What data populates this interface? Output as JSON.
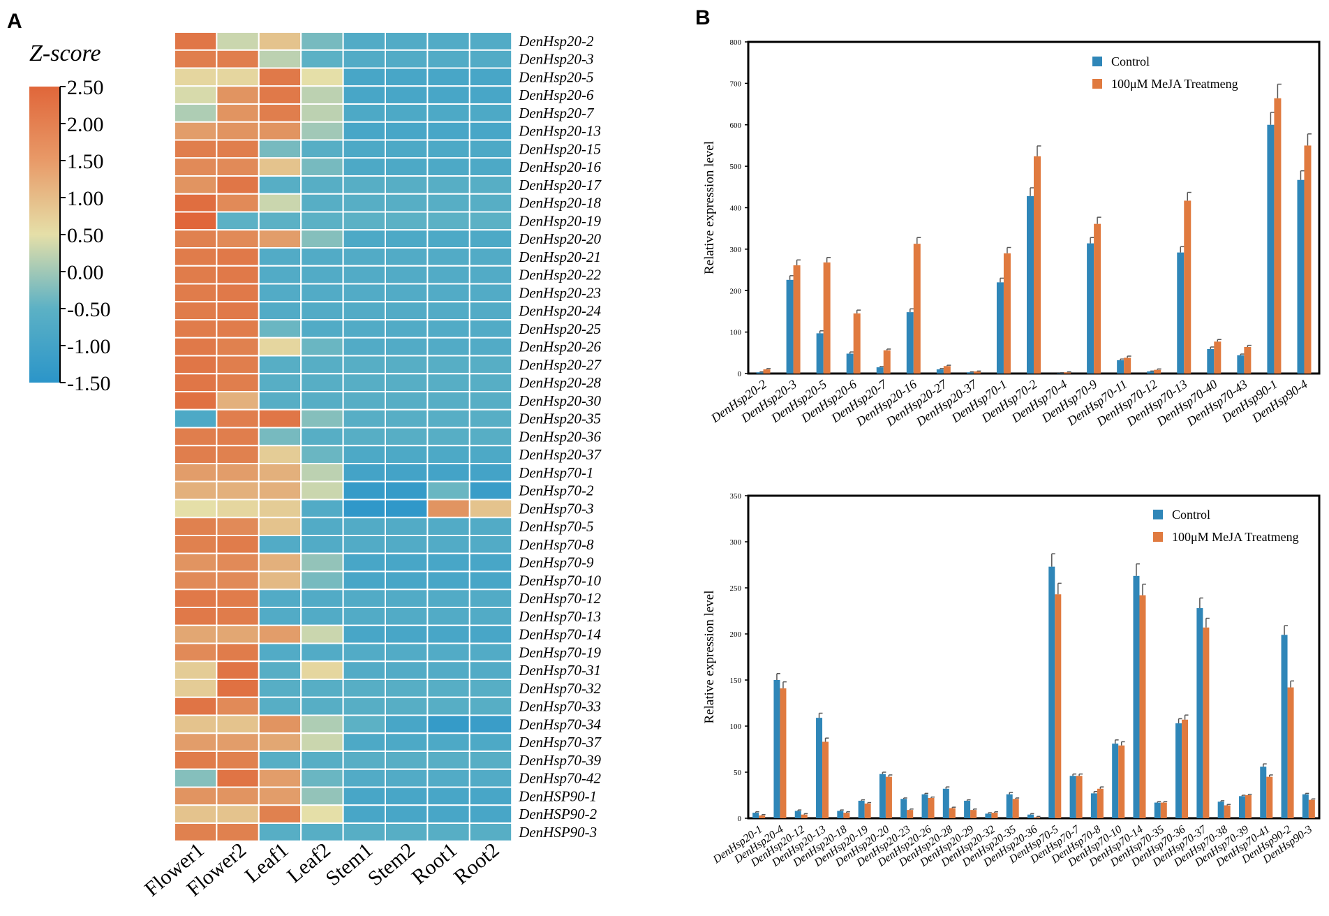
{
  "panels": {
    "a_label": "A",
    "b_label": "B"
  },
  "colors": {
    "scale": [
      "#2b95c9",
      "#5cb1c5",
      "#e5dfa8",
      "#e0814f",
      "#e0663a"
    ],
    "control": "#2f86b8",
    "treatment": "#e07a3f"
  },
  "chart_data": [
    {
      "type": "heatmap",
      "title": "Z-score",
      "colorbar": {
        "min": -1.5,
        "max": 2.5,
        "tick_labels": [
          "2.50",
          "2.00",
          "1.50",
          "1.00",
          "0.50",
          "0.00",
          "-0.50",
          "-1.00",
          "-1.50"
        ]
      },
      "columns": [
        "Flower1",
        "Flower2",
        "Leaf1",
        "Leaf2",
        "Stem1",
        "Stem2",
        "Root1",
        "Root2"
      ],
      "rows": [
        "DenHsp20-2",
        "DenHsp20-3",
        "DenHsp20-5",
        "DenHsp20-6",
        "DenHsp20-7",
        "DenHsp20-13",
        "DenHsp20-15",
        "DenHsp20-16",
        "DenHsp20-17",
        "DenHsp20-18",
        "DenHsp20-19",
        "DenHsp20-20",
        "DenHsp20-21",
        "DenHsp20-22",
        "DenHsp20-23",
        "DenHsp20-24",
        "DenHsp20-25",
        "DenHsp20-26",
        "DenHsp20-27",
        "DenHsp20-28",
        "DenHsp20-30",
        "DenHsp20-35",
        "DenHsp20-36",
        "DenHsp20-37",
        "DenHsp70-1",
        "DenHsp70-2",
        "DenHsp70-3",
        "DenHsp70-5",
        "DenHsp70-8",
        "DenHsp70-9",
        "DenHsp70-10",
        "DenHsp70-12",
        "DenHsp70-13",
        "DenHsp70-14",
        "DenHsp70-19",
        "DenHsp70-31",
        "DenHsp70-32",
        "DenHsp70-33",
        "DenHsp70-34",
        "DenHsp70-37",
        "DenHsp70-39",
        "DenHsp70-42",
        "DenHSP90-1",
        "DenHSP90-2",
        "DenHSP90-3"
      ],
      "values": [
        [
          1.9,
          0.3,
          0.8,
          -0.3,
          -0.7,
          -0.7,
          -0.7,
          -0.7
        ],
        [
          1.6,
          1.6,
          0.2,
          -0.5,
          -0.7,
          -0.7,
          -0.7,
          -0.7
        ],
        [
          0.6,
          0.6,
          1.8,
          0.5,
          -0.9,
          -0.9,
          -0.9,
          -0.9
        ],
        [
          0.4,
          1.3,
          1.8,
          0.2,
          -0.9,
          -0.9,
          -0.9,
          -0.9
        ],
        [
          0.1,
          1.3,
          1.6,
          0.2,
          -0.8,
          -0.8,
          -0.8,
          -0.8
        ],
        [
          1.2,
          1.3,
          1.3,
          0.0,
          -0.9,
          -0.9,
          -0.9,
          -0.9
        ],
        [
          1.6,
          1.6,
          -0.3,
          -0.6,
          -0.8,
          -0.8,
          -0.8,
          -0.8
        ],
        [
          1.4,
          1.4,
          0.8,
          -0.3,
          -0.8,
          -0.8,
          -0.8,
          -0.8
        ],
        [
          1.3,
          1.9,
          -0.6,
          -0.6,
          -0.6,
          -0.6,
          -0.6,
          -0.6
        ],
        [
          2.2,
          1.4,
          0.3,
          -0.6,
          -0.6,
          -0.6,
          -0.6,
          -0.6
        ],
        [
          2.5,
          -0.5,
          -0.5,
          -0.5,
          -0.5,
          -0.5,
          -0.5,
          -0.5
        ],
        [
          1.5,
          1.4,
          1.2,
          -0.2,
          -0.8,
          -0.8,
          -0.8,
          -0.8
        ],
        [
          1.7,
          1.8,
          -0.7,
          -0.7,
          -0.7,
          -0.7,
          -0.7,
          -0.7
        ],
        [
          1.7,
          1.8,
          -0.7,
          -0.7,
          -0.7,
          -0.7,
          -0.7,
          -0.7
        ],
        [
          1.7,
          1.8,
          -0.7,
          -0.7,
          -0.7,
          -0.7,
          -0.7,
          -0.7
        ],
        [
          1.7,
          1.8,
          -0.7,
          -0.7,
          -0.7,
          -0.7,
          -0.7,
          -0.7
        ],
        [
          1.7,
          1.7,
          -0.4,
          -0.7,
          -0.7,
          -0.7,
          -0.7,
          -0.7
        ],
        [
          1.8,
          1.5,
          0.6,
          -0.4,
          -0.7,
          -0.7,
          -0.7,
          -0.7
        ],
        [
          1.9,
          1.6,
          -0.6,
          -0.6,
          -0.6,
          -0.6,
          -0.6,
          -0.6
        ],
        [
          1.9,
          1.6,
          -0.6,
          -0.6,
          -0.6,
          -0.6,
          -0.6,
          -0.6
        ],
        [
          2.1,
          1.0,
          -0.6,
          -0.6,
          -0.6,
          -0.6,
          -0.6,
          -0.6
        ],
        [
          -0.8,
          1.6,
          1.9,
          -0.2,
          -0.6,
          -0.6,
          -0.6,
          -0.6
        ],
        [
          1.6,
          1.6,
          -0.3,
          -0.6,
          -0.6,
          -0.6,
          -0.6,
          -0.6
        ],
        [
          1.6,
          1.5,
          0.7,
          -0.4,
          -0.8,
          -0.8,
          -0.8,
          -0.8
        ],
        [
          1.2,
          1.2,
          1.0,
          0.2,
          -1.0,
          -1.0,
          -1.0,
          -1.0
        ],
        [
          1.0,
          1.0,
          1.0,
          0.3,
          -1.3,
          -1.3,
          -0.4,
          -1.2
        ],
        [
          0.5,
          0.6,
          0.7,
          -0.7,
          -1.4,
          -1.4,
          1.3,
          0.8
        ],
        [
          1.5,
          1.4,
          0.8,
          -0.7,
          -0.7,
          -0.7,
          -0.7,
          -0.7
        ],
        [
          1.5,
          1.7,
          -0.7,
          -0.7,
          -0.7,
          -0.7,
          -0.7,
          -0.7
        ],
        [
          1.3,
          1.4,
          1.0,
          -0.1,
          -0.9,
          -0.9,
          -0.9,
          -0.9
        ],
        [
          1.4,
          1.4,
          0.9,
          -0.3,
          -0.9,
          -0.9,
          -0.9,
          -0.9
        ],
        [
          1.8,
          1.7,
          -0.7,
          -0.7,
          -0.7,
          -0.7,
          -0.7,
          -0.7
        ],
        [
          1.8,
          1.7,
          -0.7,
          -0.7,
          -0.7,
          -0.7,
          -0.7,
          -0.7
        ],
        [
          1.1,
          1.1,
          1.2,
          0.3,
          -0.9,
          -0.9,
          -0.9,
          -0.9
        ],
        [
          1.4,
          1.7,
          -0.7,
          -0.7,
          -0.7,
          -0.7,
          -0.7,
          -0.7
        ],
        [
          0.7,
          2.0,
          -0.6,
          0.6,
          -0.7,
          -0.7,
          -0.7,
          -0.7
        ],
        [
          0.7,
          2.1,
          -0.6,
          -0.6,
          -0.6,
          -0.6,
          -0.6,
          -0.6
        ],
        [
          2.0,
          1.4,
          -0.6,
          -0.6,
          -0.6,
          -0.6,
          -0.6,
          -0.6
        ],
        [
          0.8,
          0.8,
          1.3,
          0.1,
          -0.5,
          -0.9,
          -1.3,
          -1.2
        ],
        [
          1.2,
          1.2,
          1.1,
          0.3,
          -0.8,
          -0.8,
          -0.8,
          -0.8
        ],
        [
          1.7,
          1.5,
          -0.6,
          -0.6,
          -0.6,
          -0.6,
          -0.6,
          -0.6
        ],
        [
          -0.2,
          2.0,
          1.2,
          -0.4,
          -0.7,
          -0.7,
          -0.7,
          -0.7
        ],
        [
          1.3,
          1.3,
          1.2,
          -0.1,
          -0.9,
          -0.9,
          -0.9,
          -0.9
        ],
        [
          0.8,
          0.8,
          1.5,
          0.5,
          -0.9,
          -0.9,
          -0.9,
          -0.9
        ],
        [
          1.5,
          1.5,
          -0.6,
          -0.6,
          -0.6,
          -0.6,
          -0.6,
          -0.6
        ]
      ]
    },
    {
      "type": "bar",
      "ylabel": "Relative expression level",
      "ylim": [
        0,
        800
      ],
      "yticks": [
        0,
        100,
        200,
        300,
        400,
        500,
        600,
        700,
        800
      ],
      "legend": "top-right",
      "categories": [
        "DenHsp20-2",
        "DenHsp20-3",
        "DenHsp20-5",
        "DenHsp20-6",
        "DenHsp20-7",
        "DenHsp20-16",
        "DenHsp20-27",
        "DenHsp20-37",
        "DenHsp70-1",
        "DenHsp70-2",
        "DenHsp70-4",
        "DenHsp70-9",
        "DenHsp70-11",
        "DenHsp70-12",
        "DenHsp70-13",
        "DenHsp70-40",
        "DenHsp70-43",
        "DenHsp90-1",
        "DenHsp90-4"
      ],
      "series": [
        {
          "name": "Control",
          "values": [
            3,
            226,
            97,
            48,
            15,
            148,
            10,
            3,
            220,
            428,
            1,
            314,
            32,
            5,
            292,
            59,
            44,
            600,
            467
          ],
          "errors": [
            1,
            10,
            6,
            4,
            2,
            8,
            2,
            1,
            10,
            20,
            1,
            14,
            3,
            1,
            14,
            5,
            3,
            30,
            22
          ]
        },
        {
          "name": "100μM MeJA Treatmeng",
          "values": [
            10,
            261,
            268,
            145,
            56,
            313,
            18,
            5,
            290,
            524,
            3,
            361,
            38,
            9,
            417,
            77,
            64,
            664,
            550
          ],
          "errors": [
            2,
            13,
            12,
            8,
            3,
            15,
            2,
            1,
            14,
            25,
            1,
            16,
            4,
            2,
            20,
            5,
            4,
            34,
            28
          ]
        }
      ]
    },
    {
      "type": "bar",
      "ylabel": "Relative expression level",
      "ylim": [
        0,
        350
      ],
      "yticks": [
        0,
        50,
        100,
        150,
        200,
        250,
        300,
        350
      ],
      "legend": "top-right",
      "categories": [
        "DenHsp20-1",
        "DenHsp20-4",
        "DenHsp20-12",
        "DenHsp20-13",
        "DenHsp20-18",
        "DenHsp20-19",
        "DenHsp20-20",
        "DenHsp20-23",
        "DenHsp20-26",
        "DenHsp20-28",
        "DenHsp20-29",
        "DenHsp20-32",
        "DenHsp20-35",
        "DenHsp20-36",
        "DenHsp70-5",
        "DenHsp70-7",
        "DenHsp70-8",
        "DenHsp70-10",
        "DenHsp70-14",
        "DenHsp70-35",
        "DenHsp70-36",
        "DenHsp70-37",
        "DenHsp70-38",
        "DenHsp70-39",
        "DenHsp70-41",
        "DenHsp90-2",
        "DenHsp90-3"
      ],
      "series": [
        {
          "name": "Control",
          "values": [
            6,
            150,
            8,
            109,
            8,
            19,
            48,
            21,
            26,
            32,
            19,
            5,
            26,
            4,
            273,
            46,
            27,
            81,
            263,
            17,
            103,
            228,
            18,
            24,
            56,
            199,
            26
          ],
          "errors": [
            1,
            7,
            1,
            5,
            1,
            1,
            2,
            1,
            1,
            2,
            1,
            1,
            2,
            1,
            14,
            2,
            2,
            4,
            13,
            1,
            5,
            11,
            1,
            1,
            3,
            10,
            1
          ]
        },
        {
          "name": "100μM MeJA Treatmeng",
          "values": [
            3,
            141,
            4,
            83,
            6,
            16,
            45,
            9,
            22,
            11,
            9,
            6,
            21,
            1,
            243,
            46,
            32,
            79,
            242,
            17,
            107,
            207,
            14,
            25,
            45,
            142,
            20
          ],
          "errors": [
            1,
            7,
            1,
            4,
            1,
            1,
            2,
            1,
            1,
            1,
            1,
            1,
            1,
            1,
            12,
            2,
            2,
            4,
            12,
            1,
            5,
            10,
            1,
            1,
            2,
            7,
            1
          ]
        }
      ]
    }
  ]
}
